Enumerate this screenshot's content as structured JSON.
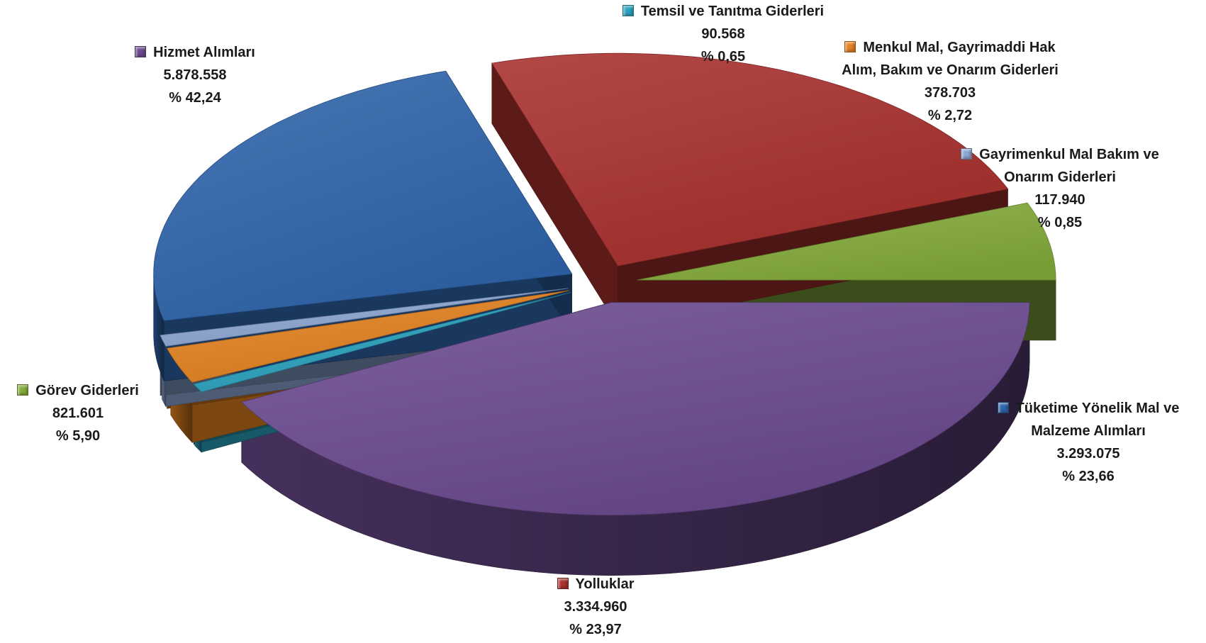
{
  "chart_data": {
    "type": "pie",
    "slices": [
      {
        "label": "Hizmet Alımları",
        "value": "5.878.558",
        "percent": "% 42,24",
        "pct": 42.24,
        "color": "#6a4a8e"
      },
      {
        "label": "Temsil ve Tanıtma Giderleri",
        "value": "90.568",
        "percent": "% 0,65",
        "pct": 0.65,
        "color": "#2aa1bd"
      },
      {
        "label": "Menkul Mal, Gayrimaddi Hak Alım, Bakım ve Onarım Giderleri",
        "value": "378.703",
        "percent": "% 2,72",
        "pct": 2.72,
        "color": "#e2811f"
      },
      {
        "label": "Gayrimenkul Mal Bakım ve Onarım Giderleri",
        "value": "117.940",
        "percent": "% 0,85",
        "pct": 0.85,
        "color": "#8ca6d2"
      },
      {
        "label": "Tüketime Yönelik Mal ve Malzeme Alımları",
        "value": "3.293.075",
        "percent": "% 23,66",
        "pct": 23.66,
        "color": "#2f64ab"
      },
      {
        "label": "Yolluklar",
        "value": "3.334.960",
        "percent": "% 23,97",
        "pct": 23.97,
        "color": "#a8302e"
      },
      {
        "label": "Görev Giderleri",
        "value": "821.601",
        "percent": "% 5,90",
        "pct": 5.9,
        "color": "#84ab3b"
      }
    ]
  }
}
